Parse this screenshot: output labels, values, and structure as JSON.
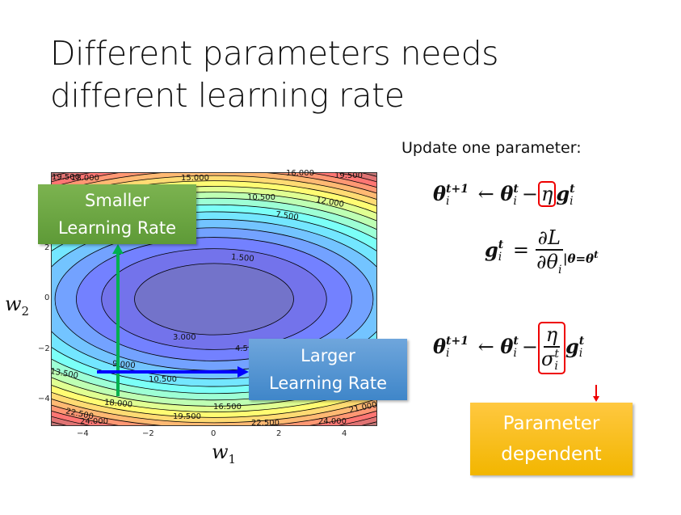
{
  "title": [
    "Different parameters needs",
    "different learning rate"
  ],
  "plot": {
    "x_ticks": [
      "−4",
      "−2",
      "0",
      "2",
      "4"
    ],
    "y_ticks": [
      "2",
      "0",
      "−2",
      "−4"
    ],
    "x_label": "w",
    "x_label_sub": "1",
    "y_label": "w",
    "y_label_sub": "2",
    "contour_labels": [
      "19.500",
      "18.000",
      "15.000",
      "16.000",
      "19.500",
      "10.500",
      "12.000",
      "7.500",
      "1.500",
      "3.000",
      "4.5",
      "9.000",
      "13.500",
      "10.500",
      "18.000",
      "16.500",
      "19.500",
      "22.500",
      "24.000",
      "21.000",
      "24.000",
      "22.500"
    ],
    "colormap": "jet",
    "arrow_vertical_color": "#00b050",
    "arrow_horizontal_color": "#0000ff"
  },
  "callouts": {
    "smaller": [
      "Smaller",
      "Learning Rate"
    ],
    "larger": [
      "Larger",
      "Learning Rate"
    ],
    "parameter_dependent": [
      "Parameter",
      "dependent"
    ]
  },
  "right": {
    "heading": "Update one parameter:",
    "theta": "θ",
    "g": "g",
    "eta": "η",
    "sigma": "σ",
    "L": "∂L",
    "dtheta": "∂θ",
    "t1": "t+1",
    "t": "t",
    "i": "i",
    "arrow": "←",
    "minus": "−",
    "eq": "=",
    "eval": "|θ=θ",
    "highlight_color": "#ff0000"
  }
}
